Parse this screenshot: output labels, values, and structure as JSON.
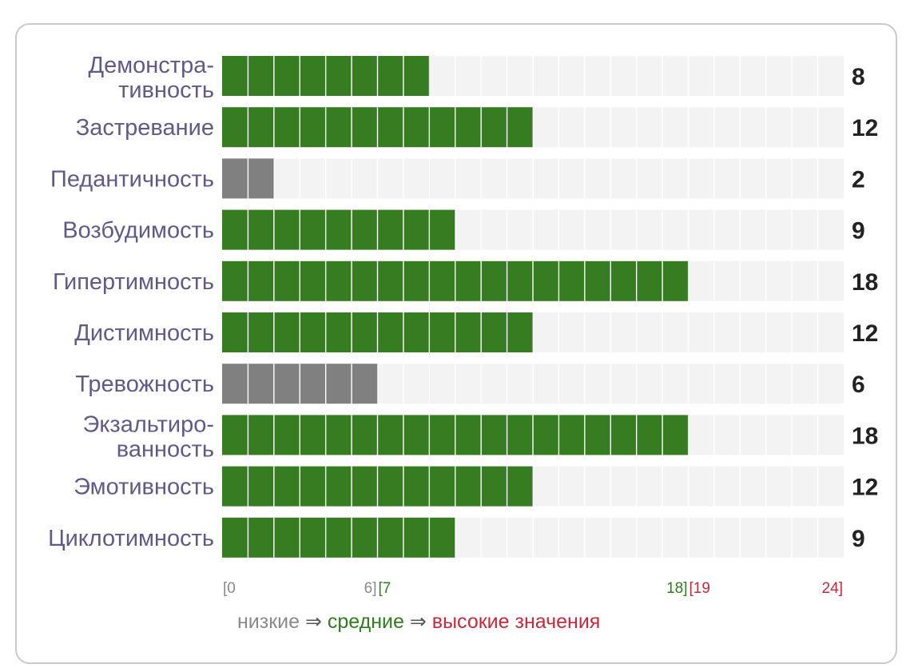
{
  "chart_data": {
    "type": "bar",
    "orientation": "horizontal",
    "categories": [
      [
        "Демонстра-",
        "тивность"
      ],
      [
        "Застревание"
      ],
      [
        "Педантичность"
      ],
      [
        "Возбудимость"
      ],
      [
        "Гипертимность"
      ],
      [
        "Дистимность"
      ],
      [
        "Тревожность"
      ],
      [
        "Экзальтиро-",
        "ванность"
      ],
      [
        "Эмотивность"
      ],
      [
        "Циклотимность"
      ]
    ],
    "values": [
      8,
      12,
      2,
      9,
      18,
      12,
      6,
      18,
      12,
      9
    ],
    "value_labels": [
      "8",
      "12",
      "2",
      "9",
      "18",
      "12",
      "6",
      "18",
      "12",
      "9"
    ],
    "xlim": [
      0,
      24
    ],
    "ranges": [
      {
        "name": "низкие",
        "from": 0,
        "to": 6,
        "color": "#808080"
      },
      {
        "name": "средние",
        "from": 7,
        "to": 18,
        "color": "#367c20"
      },
      {
        "name": "высокие",
        "from": 19,
        "to": 24,
        "color": "#c8283c"
      }
    ],
    "range_labels": [
      {
        "text": "[0",
        "at": 0,
        "anchor": "start",
        "color": "#8a8a8a"
      },
      {
        "text": "6]",
        "at": 6,
        "anchor": "end",
        "color": "#8a8a8a"
      },
      {
        "text": "[7",
        "at": 6,
        "anchor": "start",
        "color": "#2f7d1f"
      },
      {
        "text": "18]",
        "at": 18,
        "anchor": "end",
        "color": "#2f7d1f"
      },
      {
        "text": "[19",
        "at": 18,
        "anchor": "start",
        "color": "#c8283c"
      },
      {
        "text": "24]",
        "at": 24,
        "anchor": "end",
        "color": "#c8283c"
      }
    ],
    "track_color": "#f3f3f3",
    "label_color": "#5e5a8a"
  },
  "legend": {
    "low": "низкие",
    "arrow1": "⇒",
    "mid": "средние",
    "arrow2": "⇒",
    "high": "высокие значения"
  }
}
